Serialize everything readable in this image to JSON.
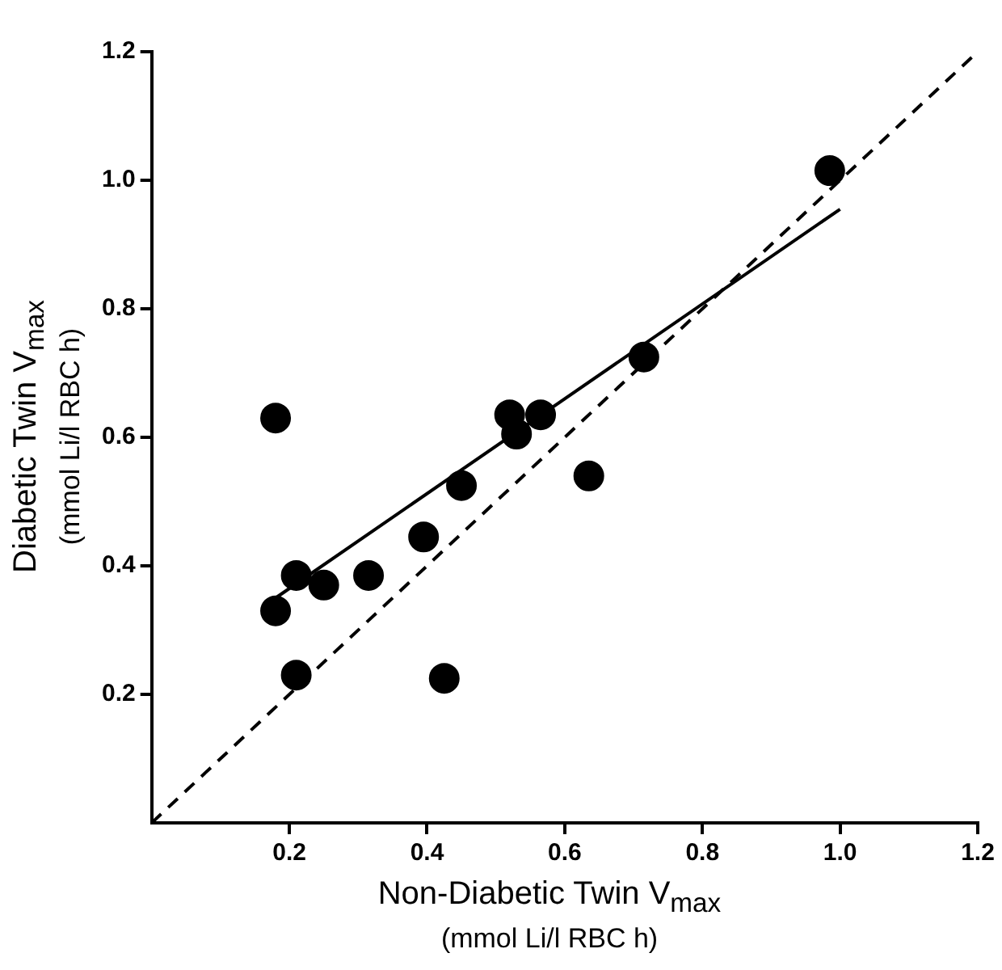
{
  "chart_data": {
    "type": "scatter",
    "xlabel": "Non-Diabetic Twin V$_{max}$\n(mmol Li/l RBC h)",
    "ylabel": "Diabetic Twin V$_{max}$\n(mmol Li/l RBC h)",
    "xlim": [
      0,
      1.2
    ],
    "ylim": [
      0,
      1.2
    ],
    "xticks": [
      0.2,
      0.4,
      0.6,
      0.8,
      {
        "value": 1,
        "label": "1.0"
      },
      1.2
    ],
    "yticks": [
      0.2,
      0.4,
      0.6,
      0.8,
      {
        "value": 1,
        "label": "1.0"
      },
      1.2
    ],
    "grid": false,
    "series": [
      {
        "type": "scatter",
        "color": "#000000",
        "marker": "circle",
        "x": [
          0.18,
          0.52,
          0.565,
          0.53,
          0.45,
          0.635,
          0.715,
          0.985,
          0.395,
          0.21,
          0.25,
          0.315,
          0.18,
          0.21,
          0.425
        ],
        "values": [
          0.63,
          0.635,
          0.635,
          0.605,
          0.525,
          0.54,
          0.725,
          1.015,
          0.445,
          0.385,
          0.37,
          0.385,
          0.33,
          0.23,
          0.225
        ]
      },
      {
        "type": "line",
        "color": "#000000",
        "marker": "none",
        "line_style": "solid",
        "x": [
          0.18,
          1.0
        ],
        "values": [
          0.35,
          0.955
        ]
      },
      {
        "type": "line",
        "color": "#000000",
        "marker": "none",
        "line_style": "dashed",
        "x": [
          0,
          1.2
        ],
        "values": [
          0,
          1.2
        ]
      }
    ]
  }
}
